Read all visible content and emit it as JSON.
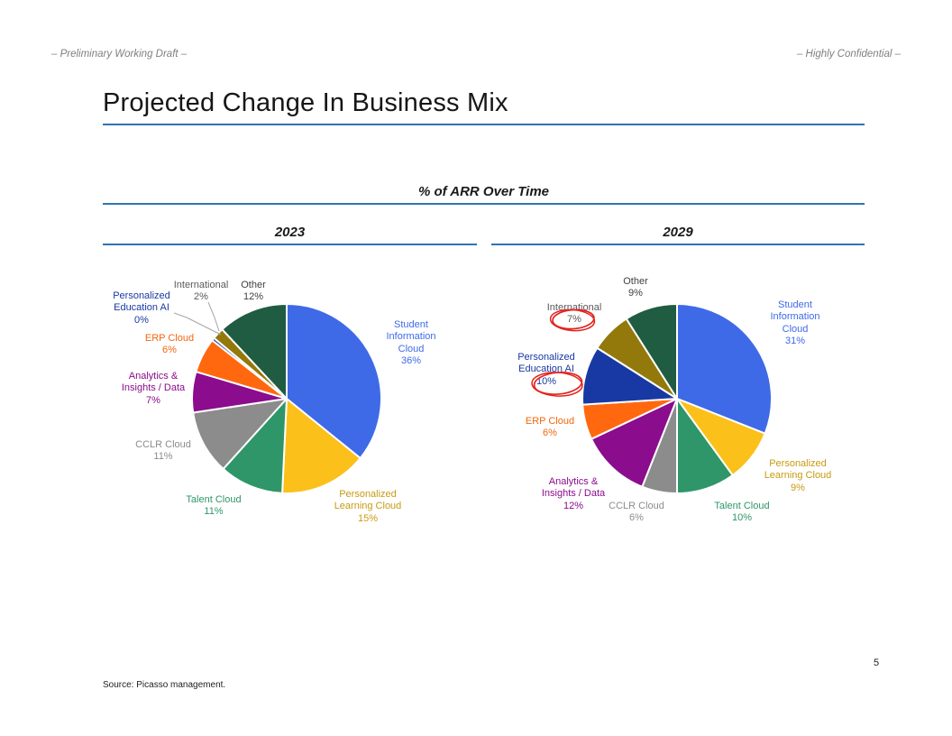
{
  "page": {
    "header_left": "– Preliminary Working Draft –",
    "header_right": "– Highly Confidential –",
    "title": "Projected Change In Business Mix",
    "subtitle": "% of ARR Over Time",
    "source": "Source: Picasso management.",
    "page_number": "5"
  },
  "colors": {
    "rule_blue": "#2E74B5",
    "leader_gray": "#A6A6A6",
    "annotation_red": "#E22420"
  },
  "chart_data": [
    {
      "type": "pie",
      "title": "2023",
      "unit": "% of ARR",
      "legend_position": "none (labels outside, colored to match slices)",
      "slices": [
        {
          "name": "Student Information Cloud",
          "value": 36,
          "pct": "36%",
          "color": "#3E6AE8",
          "label": "Student\nInformation\nCloud\n36%",
          "label_color": "#3E6AE8"
        },
        {
          "name": "Personalized Learning Cloud",
          "value": 15,
          "pct": "15%",
          "color": "#FBC01A",
          "label": "Personalized\nLearning Cloud\n15%",
          "label_color": "#C79B11"
        },
        {
          "name": "Talent Cloud",
          "value": 11,
          "pct": "11%",
          "color": "#2E9668",
          "label": "Talent Cloud\n11%",
          "label_color": "#2E9668"
        },
        {
          "name": "CCLR Cloud",
          "value": 11,
          "pct": "11%",
          "color": "#8C8C8C",
          "label": "CCLR Cloud\n11%",
          "label_color": "#8C8C8C"
        },
        {
          "name": "Analytics & Insights / Data",
          "value": 7,
          "pct": "7%",
          "color": "#8B0C8C",
          "label": "Analytics &\nInsights / Data\n7%",
          "label_color": "#8B0C8C"
        },
        {
          "name": "ERP Cloud",
          "value": 6,
          "pct": "6%",
          "color": "#FF680E",
          "label": "ERP Cloud\n6%",
          "label_color": "#F2670D"
        },
        {
          "name": "Personalized Education AI",
          "value": 0,
          "pct": "0%",
          "color": "#1839A4",
          "label": "Personalized\nEducation AI\n0%",
          "label_color": "#1839A4"
        },
        {
          "name": "International",
          "value": 2,
          "pct": "2%",
          "color": "#93790B",
          "label": "International\n2%",
          "label_color": "#595959"
        },
        {
          "name": "Other",
          "value": 12,
          "pct": "12%",
          "color": "#1F5C41",
          "label": "Other\n12%",
          "label_color": "#404040"
        }
      ]
    },
    {
      "type": "pie",
      "title": "2029",
      "unit": "% of ARR",
      "legend_position": "none (labels outside, colored to match slices)",
      "annotations": [
        {
          "target": "International",
          "circled_text": "7%",
          "style": "hand-drawn red ellipse"
        },
        {
          "target": "Personalized Education AI",
          "circled_text": "10%",
          "style": "hand-drawn red ellipse"
        }
      ],
      "slices": [
        {
          "name": "Student Information Cloud",
          "value": 31,
          "pct": "31%",
          "color": "#3E6AE8",
          "label": "Student\nInformation\nCloud\n31%",
          "label_color": "#3E6AE8"
        },
        {
          "name": "Personalized Learning Cloud",
          "value": 9,
          "pct": "9%",
          "color": "#FBC01A",
          "label": "Personalized\nLearning Cloud\n9%",
          "label_color": "#C79B11"
        },
        {
          "name": "Talent Cloud",
          "value": 10,
          "pct": "10%",
          "color": "#2E9668",
          "label": "Talent Cloud\n10%",
          "label_color": "#2E9668"
        },
        {
          "name": "CCLR Cloud",
          "value": 6,
          "pct": "6%",
          "color": "#8C8C8C",
          "label": "CCLR Cloud\n6%",
          "label_color": "#8C8C8C"
        },
        {
          "name": "Analytics & Insights / Data",
          "value": 12,
          "pct": "12%",
          "color": "#8B0C8C",
          "label": "Analytics &\nInsights / Data\n12%",
          "label_color": "#8B0C8C"
        },
        {
          "name": "ERP Cloud",
          "value": 6,
          "pct": "6%",
          "color": "#FF680E",
          "label": "ERP Cloud\n6%",
          "label_color": "#F2670D"
        },
        {
          "name": "Personalized Education AI",
          "value": 10,
          "pct": "10%",
          "color": "#1839A4",
          "label": "Personalized\nEducation AI\n10%",
          "label_color": "#1839A4"
        },
        {
          "name": "International",
          "value": 7,
          "pct": "7%",
          "color": "#93790B",
          "label": "International\n7%",
          "label_color": "#595959"
        },
        {
          "name": "Other",
          "value": 9,
          "pct": "9%",
          "color": "#1F5C41",
          "label": "Other\n9%",
          "label_color": "#404040"
        }
      ]
    }
  ]
}
